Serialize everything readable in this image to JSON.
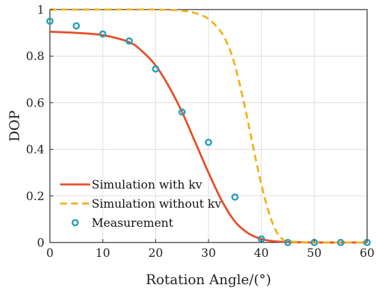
{
  "chart_data": {
    "type": "line",
    "xlabel": "Rotation Angle/(°)",
    "ylabel": "DOP",
    "xlim": [
      0,
      60
    ],
    "ylim": [
      0,
      1
    ],
    "xticks": [
      "0",
      "10",
      "20",
      "30",
      "40",
      "50",
      "60"
    ],
    "yticks": [
      "0",
      "0.2",
      "0.4",
      "0.6",
      "0.8",
      "1"
    ],
    "grid": true,
    "legend_position": "bottom-left",
    "series": [
      {
        "name": "Simulation with kv",
        "style": "solid",
        "color": "#e5502a",
        "x": [
          0,
          5,
          10,
          15,
          17.5,
          20,
          22.5,
          25,
          27.5,
          30,
          32.5,
          35,
          37.5,
          40,
          42.5,
          45,
          50,
          55,
          60
        ],
        "y": [
          0.905,
          0.9,
          0.89,
          0.86,
          0.82,
          0.76,
          0.67,
          0.56,
          0.43,
          0.3,
          0.18,
          0.09,
          0.04,
          0.015,
          0.005,
          0.002,
          0,
          0,
          0
        ]
      },
      {
        "name": "Simulation without kv",
        "style": "dashed",
        "color": "#f2b21b",
        "x": [
          0,
          10,
          20,
          25,
          27.5,
          30,
          32.5,
          34,
          35,
          36,
          37,
          38,
          39,
          40,
          41,
          42,
          43,
          44,
          45,
          50,
          55,
          60
        ],
        "y": [
          1,
          1,
          1,
          0.995,
          0.985,
          0.96,
          0.9,
          0.83,
          0.76,
          0.67,
          0.57,
          0.46,
          0.35,
          0.25,
          0.16,
          0.09,
          0.04,
          0.015,
          0.005,
          0,
          0,
          0
        ]
      },
      {
        "name": "Measurement",
        "style": "marker",
        "color": "#2aa0b8",
        "x": [
          0,
          5,
          10,
          15,
          20,
          25,
          30,
          35,
          40,
          45,
          50,
          55,
          60
        ],
        "y": [
          0.95,
          0.93,
          0.895,
          0.865,
          0.745,
          0.56,
          0.43,
          0.195,
          0.015,
          0,
          0,
          0,
          0
        ]
      }
    ]
  }
}
